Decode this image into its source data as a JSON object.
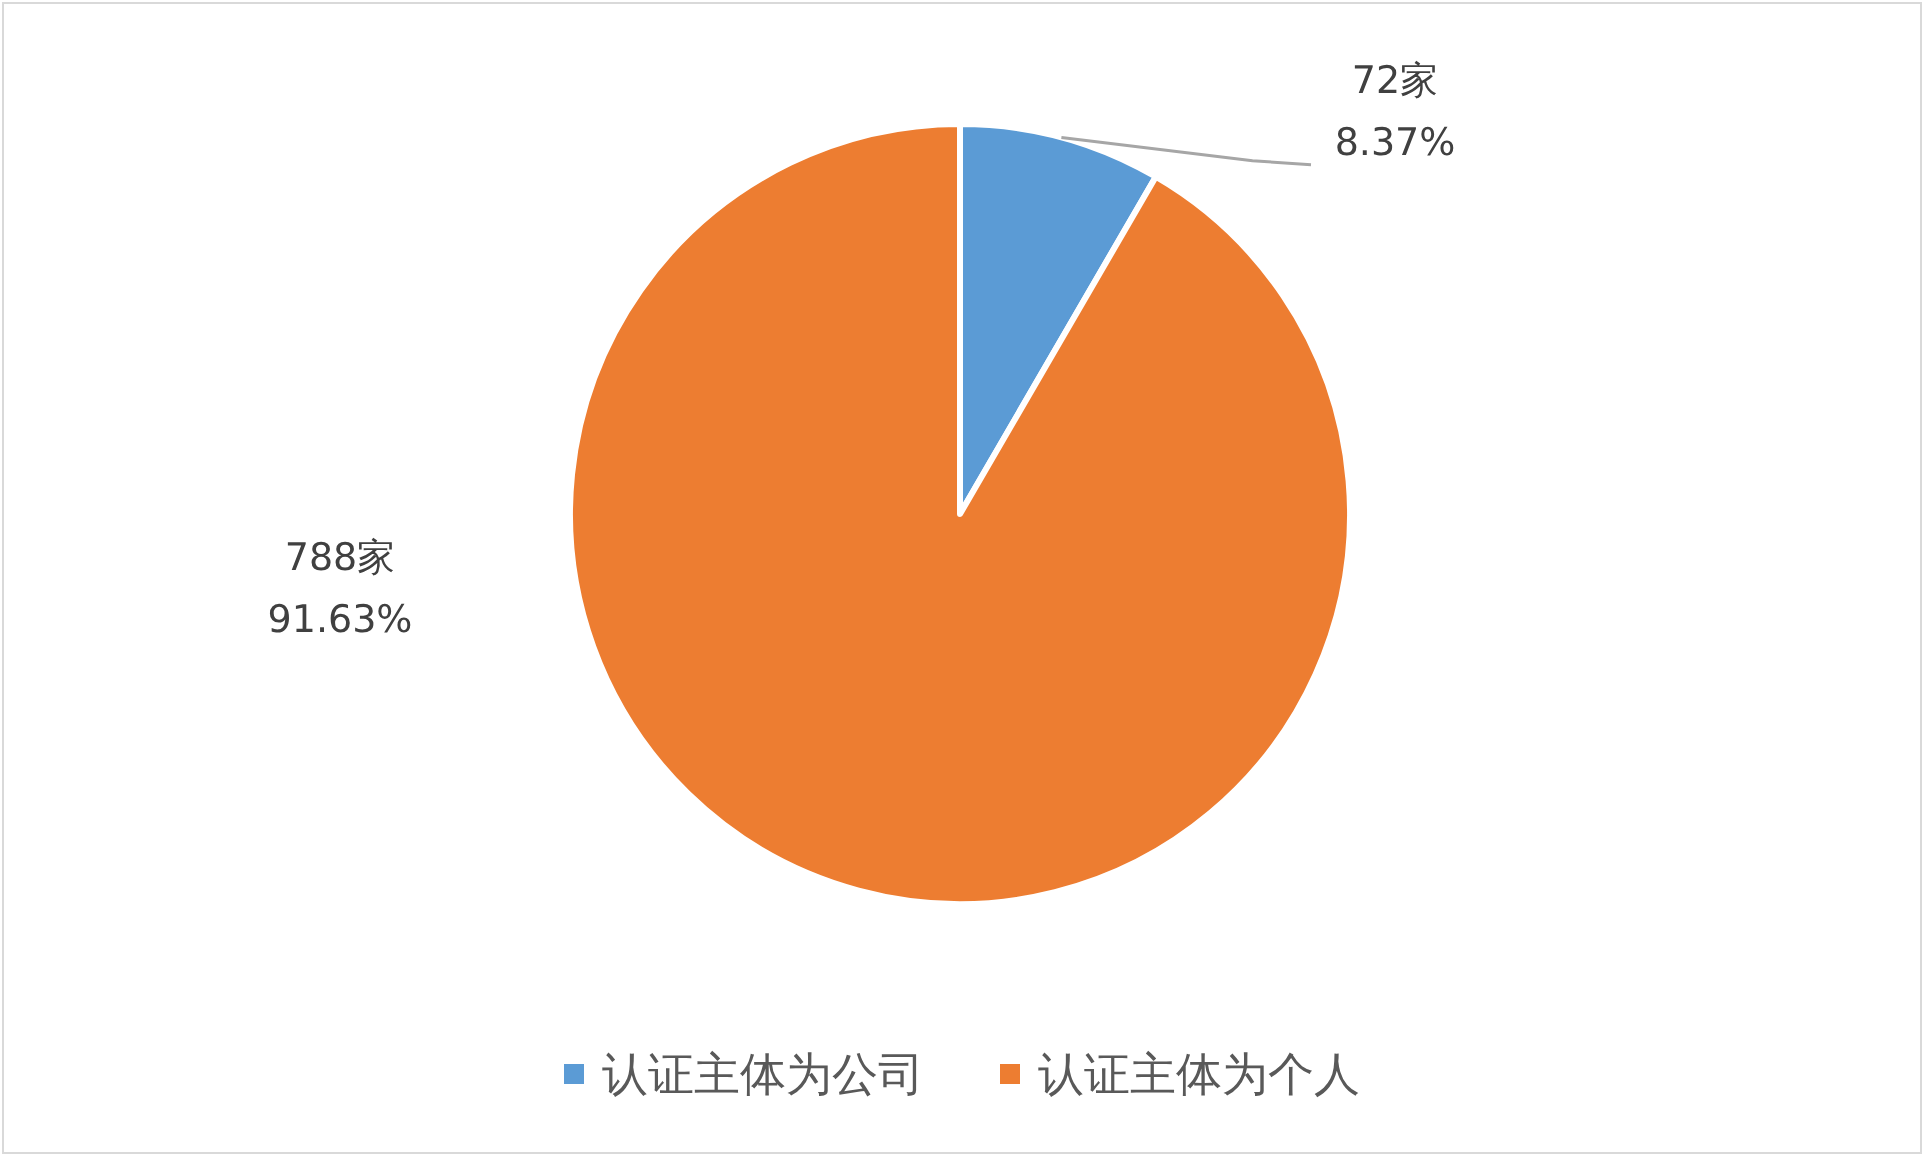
{
  "chart_data": {
    "type": "pie",
    "categories": [
      "认证主体为公司",
      "认证主体为个人"
    ],
    "values": [
      72,
      788
    ],
    "colors": [
      "#5b9bd5",
      "#ed7d31"
    ],
    "value_labels": [
      "72家\n8.37%",
      "788家\n91.63%"
    ],
    "legend": "bottom"
  }
}
